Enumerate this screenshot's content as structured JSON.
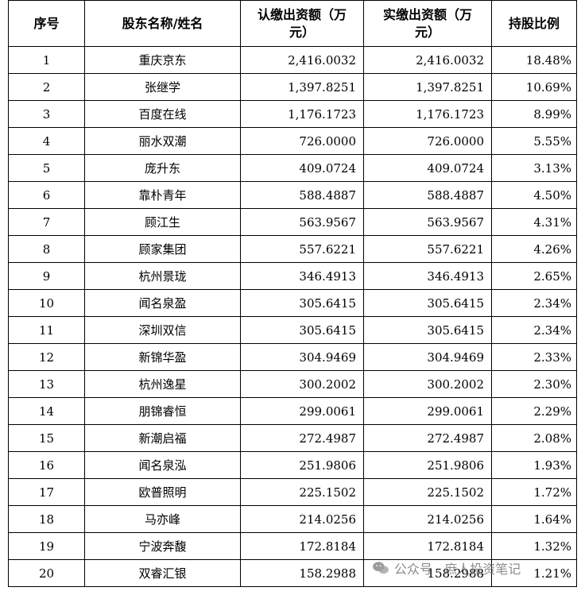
{
  "table": {
    "headers": [
      "序号",
      "股东名称/姓名",
      "认缴出资额（万元）",
      "实缴出资额（万元）",
      "持股比例"
    ],
    "rows": [
      [
        "1",
        "重庆京东",
        "2,416.0032",
        "2,416.0032",
        "18.48%"
      ],
      [
        "2",
        "张继学",
        "1,397.8251",
        "1,397.8251",
        "10.69%"
      ],
      [
        "3",
        "百度在线",
        "1,176.1723",
        "1,176.1723",
        "8.99%"
      ],
      [
        "4",
        "丽水双潮",
        "726.0000",
        "726.0000",
        "5.55%"
      ],
      [
        "5",
        "庞升东",
        "409.0724",
        "409.0724",
        "3.13%"
      ],
      [
        "6",
        "靠朴青年",
        "588.4887",
        "588.4887",
        "4.50%"
      ],
      [
        "7",
        "顾江生",
        "563.9567",
        "563.9567",
        "4.31%"
      ],
      [
        "8",
        "顾家集团",
        "557.6221",
        "557.6221",
        "4.26%"
      ],
      [
        "9",
        "杭州景珑",
        "346.4913",
        "346.4913",
        "2.65%"
      ],
      [
        "10",
        "闻名泉盈",
        "305.6415",
        "305.6415",
        "2.34%"
      ],
      [
        "11",
        "深圳双信",
        "305.6415",
        "305.6415",
        "2.34%"
      ],
      [
        "12",
        "新锦华盈",
        "304.9469",
        "304.9469",
        "2.33%"
      ],
      [
        "13",
        "杭州逸星",
        "300.2002",
        "300.2002",
        "2.30%"
      ],
      [
        "14",
        "朋锦睿恒",
        "299.0061",
        "299.0061",
        "2.29%"
      ],
      [
        "15",
        "新潮启福",
        "272.4987",
        "272.4987",
        "2.08%"
      ],
      [
        "16",
        "闻名泉泓",
        "251.9806",
        "251.9806",
        "1.93%"
      ],
      [
        "17",
        "欧普照明",
        "225.1502",
        "225.1502",
        "1.72%"
      ],
      [
        "18",
        "马亦峰",
        "214.0256",
        "214.0256",
        "1.64%"
      ],
      [
        "19",
        "宁波奔馥",
        "172.8184",
        "172.8184",
        "1.32%"
      ],
      [
        "20",
        "双睿汇银",
        "158.2988",
        "158.2988",
        "1.21%"
      ]
    ]
  },
  "watermark": {
    "icon": "wechat-icon",
    "text": "公众号 · 庶人投资笔记"
  }
}
